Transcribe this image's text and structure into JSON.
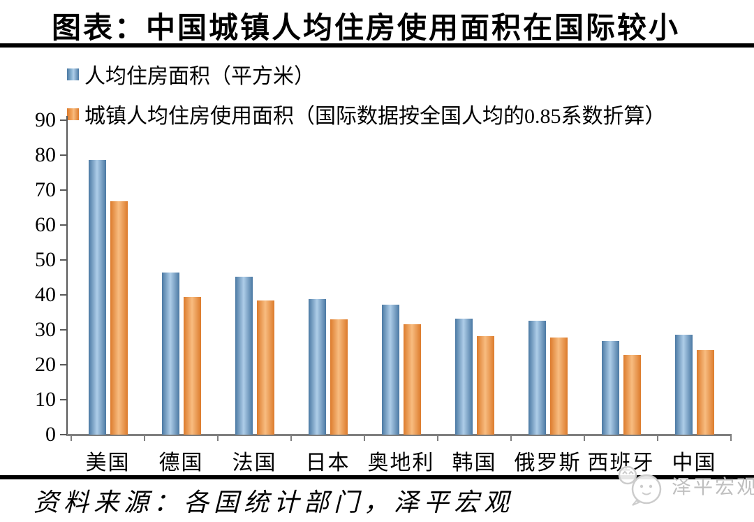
{
  "title": "图表：中国城镇人均住房使用面积在国际较小",
  "legend": [
    {
      "label": "人均住房面积（平方米）",
      "color": "#5b8ab8"
    },
    {
      "label": "城镇人均住房使用面积（国际数据按全国人均的0.85系数折算）",
      "color": "#ed9549"
    }
  ],
  "source": "资料来源：各国统计部门，泽平宏观",
  "watermark": "泽平宏观",
  "chart_data": {
    "type": "bar",
    "title": "图表：中国城镇人均住房使用面积在国际较小",
    "categories": [
      "美国",
      "德国",
      "法国",
      "日本",
      "奥地利",
      "韩国",
      "俄罗斯",
      "西班牙",
      "中国"
    ],
    "series": [
      {
        "name": "人均住房面积（平方米）",
        "color_dark": "#4b79a3",
        "color_light": "#aecde8",
        "values": [
          78.7,
          46.5,
          45.3,
          38.9,
          37.3,
          33.2,
          32.7,
          26.9,
          28.6
        ]
      },
      {
        "name": "城镇人均住房使用面积（国际数据按全国人均的0.85系数折算）",
        "color_dark": "#dc7b2c",
        "color_light": "#f8bc80",
        "values": [
          66.9,
          39.5,
          38.5,
          33.1,
          31.7,
          28.2,
          27.8,
          22.9,
          24.3
        ]
      }
    ],
    "xlabel": "",
    "ylabel": "",
    "ylim": [
      0,
      90
    ],
    "ytick_step": 10,
    "grid": false,
    "legend_position": "top-left"
  }
}
